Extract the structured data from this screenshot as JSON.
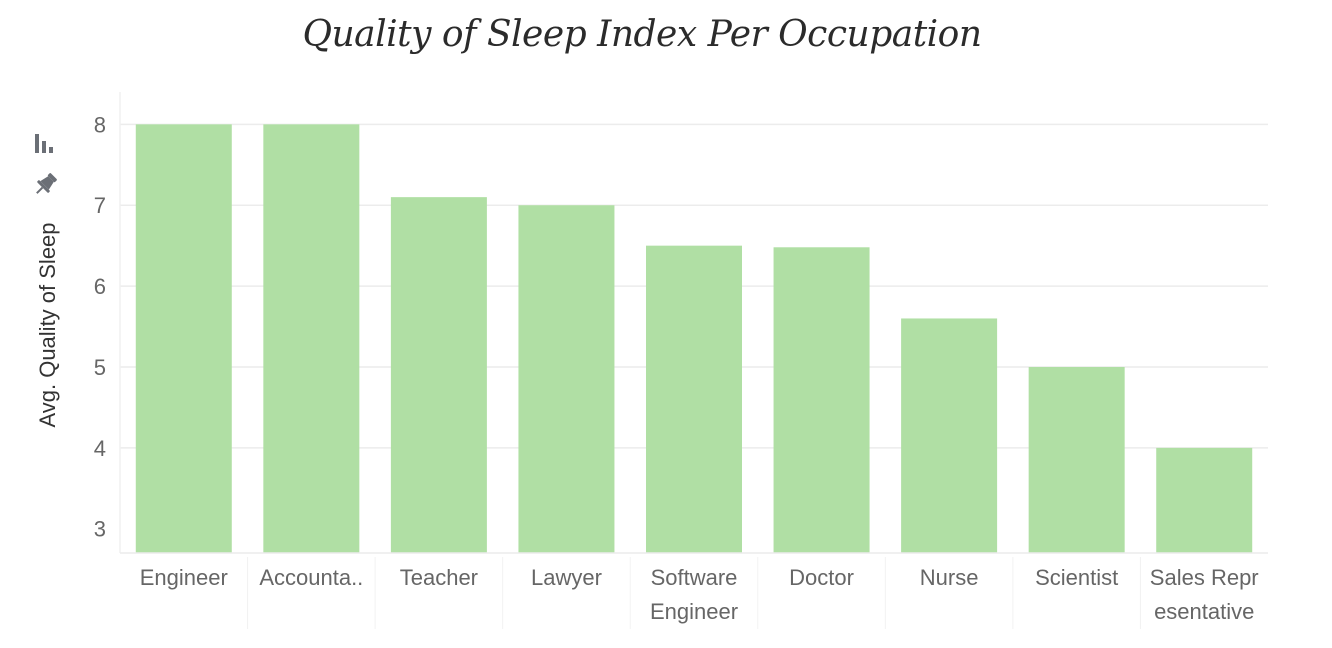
{
  "chart_data": {
    "type": "bar",
    "title": "Quality of Sleep Index Per Occupation",
    "xlabel": "",
    "ylabel": "Avg. Quality of Sleep",
    "ylim": [
      2.7,
      8.4
    ],
    "yticks": [
      3,
      4,
      5,
      6,
      7,
      8
    ],
    "grid": true,
    "categories": [
      "Engineer",
      "Accounta..",
      "Teacher",
      "Lawyer",
      "Software Engineer",
      "Doctor",
      "Nurse",
      "Scientist",
      "Sales Representative"
    ],
    "category_lines": [
      [
        "Engineer"
      ],
      [
        "Accounta.."
      ],
      [
        "Teacher"
      ],
      [
        "Lawyer"
      ],
      [
        "Software",
        "Engineer"
      ],
      [
        "Doctor"
      ],
      [
        "Nurse"
      ],
      [
        "Scientist"
      ],
      [
        "Sales Repr",
        "esentative"
      ]
    ],
    "values": [
      8.0,
      8.0,
      7.1,
      7.0,
      6.5,
      6.48,
      5.6,
      5.0,
      4.0
    ],
    "bar_color": "#b0dfa4",
    "grid_color": "#ececec"
  },
  "toolbar": {
    "icons": [
      "sort-icon",
      "pin-icon"
    ]
  }
}
